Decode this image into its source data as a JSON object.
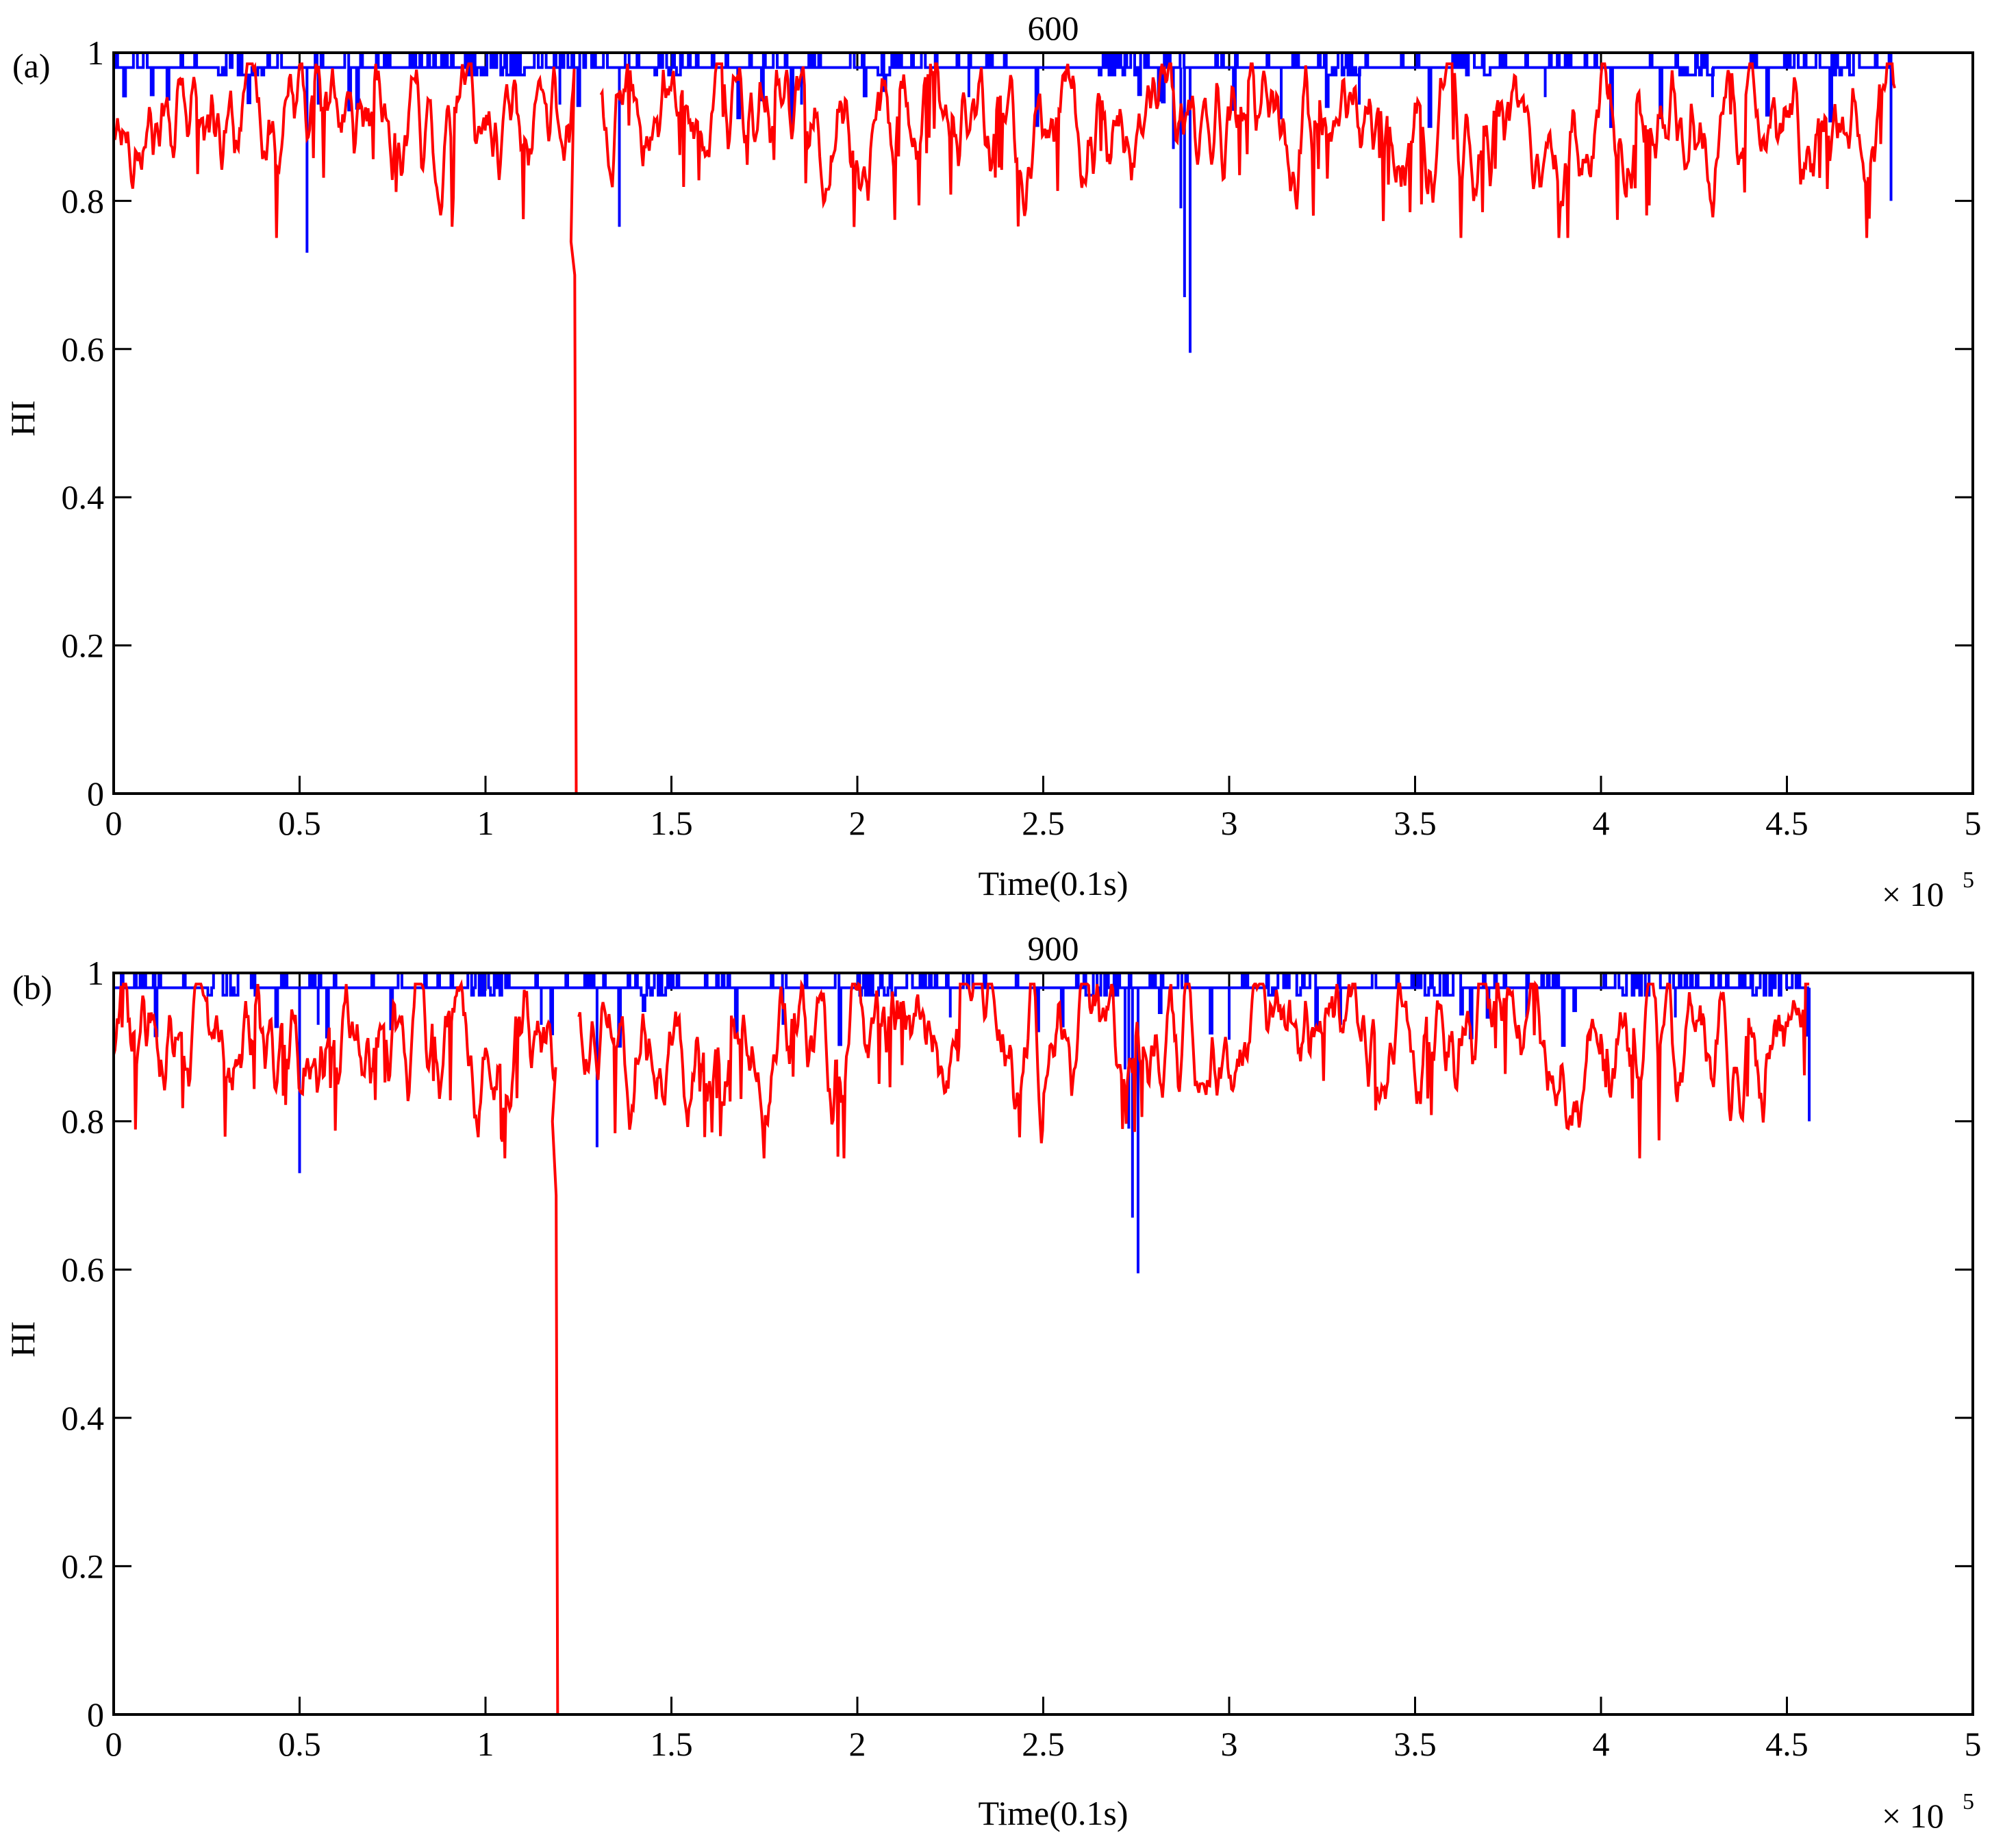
{
  "colors": {
    "series_a": "#0000ff",
    "series_b": "#ff0000",
    "axes": "#000000"
  },
  "chart_data": [
    {
      "type": "line",
      "panel_label": "(a)",
      "title": "600",
      "xlabel": "Time(0.1s)",
      "ylabel": "HI",
      "x_exponent": "× 10",
      "x_exponent_power": "5",
      "xlim": [
        0,
        5
      ],
      "ylim": [
        0,
        1
      ],
      "xticks": [
        0,
        0.5,
        1,
        1.5,
        2,
        2.5,
        3,
        3.5,
        4,
        4.5,
        5
      ],
      "xtick_labels": [
        "0",
        "0.5",
        "1",
        "1.5",
        "2",
        "2.5",
        "3",
        "3.5",
        "4",
        "4.5",
        "5"
      ],
      "yticks": [
        0,
        0.2,
        0.4,
        0.6,
        0.8,
        1
      ],
      "ytick_labels": [
        "0",
        "0.2",
        "0.4",
        "0.6",
        "0.8",
        "1"
      ],
      "grid": false,
      "series": [
        {
          "color": "#0000ff",
          "style": "step",
          "x_end": 4.78,
          "baseline": 0.98,
          "dips": [
            [
              0.52,
              0.73
            ],
            [
              1.36,
              0.765
            ],
            [
              2.88,
              0.67
            ],
            [
              2.895,
              0.595
            ],
            [
              2.87,
              0.79
            ],
            [
              2.85,
              0.87
            ],
            [
              3.14,
              0.91
            ],
            [
              4.78,
              0.8
            ],
            [
              0.55,
              0.93
            ],
            [
              1.2,
              0.93
            ],
            [
              1.85,
              0.93
            ],
            [
              2.3,
              0.94
            ],
            [
              3.35,
              0.93
            ],
            [
              3.85,
              0.94
            ],
            [
              4.3,
              0.94
            ]
          ],
          "spike_groups": [
            [
              0.28,
              0.4
            ],
            [
              0.95,
              1.1
            ],
            [
              1.45,
              1.55
            ],
            [
              2.05,
              2.12
            ],
            [
              2.65,
              2.75
            ],
            [
              3.25,
              3.35
            ],
            [
              3.6,
              3.7
            ],
            [
              4.2,
              4.3
            ],
            [
              4.6,
              4.7
            ]
          ]
        },
        {
          "color": "#ff0000",
          "style": "noisy",
          "x_end": 4.79,
          "mean": 0.905,
          "amplitude": 0.06,
          "crash_x": 1.24,
          "crash_min_before": 0.745,
          "zero_until": 1.3,
          "resume_x": 1.31,
          "seed": 17
        }
      ]
    },
    {
      "type": "line",
      "panel_label": "(b)",
      "title": "900",
      "xlabel": "Time(0.1s)",
      "ylabel": "HI",
      "x_exponent": "× 10",
      "x_exponent_power": "5",
      "xlim": [
        0,
        5
      ],
      "ylim": [
        0,
        1
      ],
      "xticks": [
        0,
        0.5,
        1,
        1.5,
        2,
        2.5,
        3,
        3.5,
        4,
        4.5,
        5
      ],
      "xtick_labels": [
        "0",
        "0.5",
        "1",
        "1.5",
        "2",
        "2.5",
        "3",
        "3.5",
        "4",
        "4.5",
        "5"
      ],
      "yticks": [
        0,
        0.2,
        0.4,
        0.6,
        0.8,
        1
      ],
      "ytick_labels": [
        "0",
        "0.2",
        "0.4",
        "0.6",
        "0.8",
        "1"
      ],
      "grid": false,
      "series": [
        {
          "color": "#0000ff",
          "style": "step",
          "x_end": 4.56,
          "baseline": 0.98,
          "dips": [
            [
              0.5,
              0.73
            ],
            [
              1.3,
              0.765
            ],
            [
              2.74,
              0.67
            ],
            [
              2.755,
              0.595
            ],
            [
              2.73,
              0.79
            ],
            [
              2.72,
              0.87
            ],
            [
              3.0,
              0.91
            ],
            [
              4.56,
              0.8
            ],
            [
              0.55,
              0.93
            ],
            [
              1.15,
              0.93
            ],
            [
              1.8,
              0.93
            ],
            [
              2.25,
              0.94
            ],
            [
              3.3,
              0.93
            ],
            [
              3.8,
              0.94
            ],
            [
              4.2,
              0.94
            ]
          ],
          "spike_groups": [
            [
              0.25,
              0.38
            ],
            [
              0.95,
              1.05
            ],
            [
              1.4,
              1.5
            ],
            [
              2.0,
              2.1
            ],
            [
              2.6,
              2.7
            ],
            [
              3.1,
              3.2
            ],
            [
              3.5,
              3.6
            ],
            [
              4.05,
              4.15
            ],
            [
              4.4,
              4.5
            ]
          ]
        },
        {
          "color": "#ff0000",
          "style": "noisy",
          "x_end": 4.56,
          "mean": 0.905,
          "amplitude": 0.06,
          "crash_x": 1.19,
          "crash_min_before": 0.8,
          "zero_until": 1.24,
          "resume_x": 1.25,
          "seed": 29
        }
      ]
    }
  ]
}
